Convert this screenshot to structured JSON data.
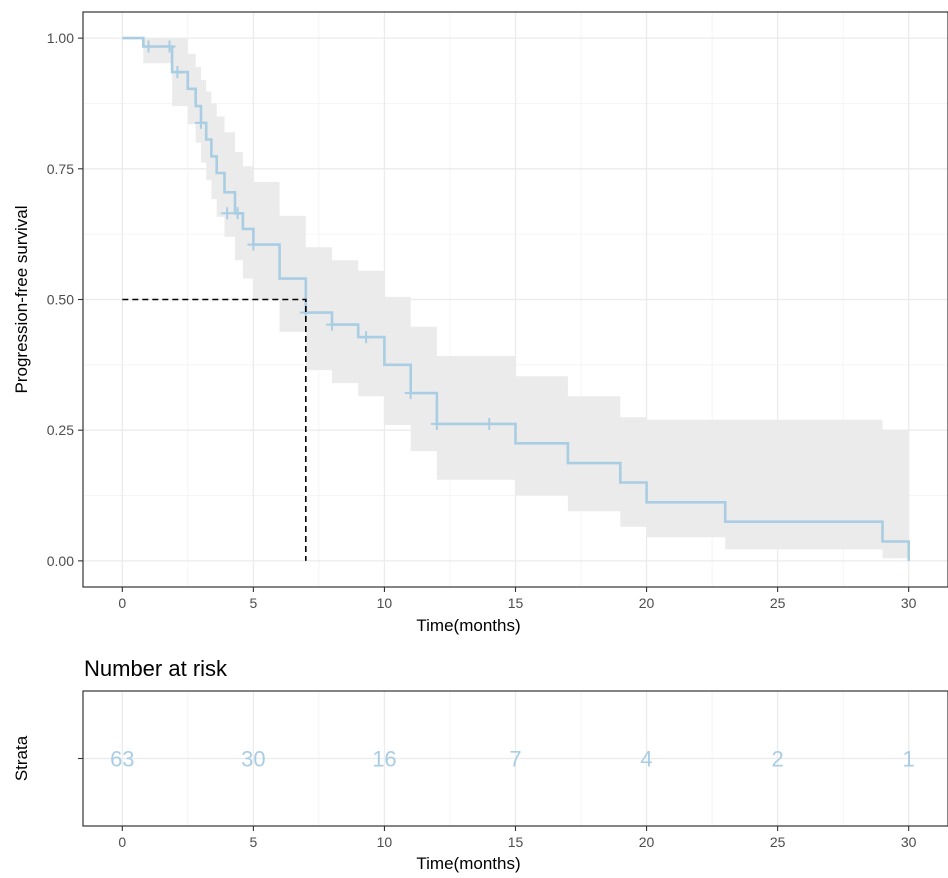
{
  "chart_data": [
    {
      "type": "line",
      "subtype": "kaplan-meier-step",
      "xlabel": "Time(months)",
      "ylabel": "Progression-free survival",
      "xlim": [
        -1.5,
        31.5
      ],
      "ylim": [
        -0.05,
        1.05
      ],
      "x_ticks": [
        0,
        5,
        10,
        15,
        20,
        25,
        30
      ],
      "y_ticks": [
        0,
        0.25,
        0.5,
        0.75,
        1.0
      ],
      "y_tick_labels": [
        "0.00",
        "0.25",
        "0.50",
        "0.75",
        "1.00"
      ],
      "grid": true,
      "colors": {
        "curve": "#a9cde3",
        "ci_band": "#ebebeb",
        "median_line": "#000000",
        "frame": "#333333",
        "grid": "#ebebeb"
      },
      "series": [
        {
          "steps": [
            [
              0,
              1.0
            ],
            [
              0.8,
              0.984
            ],
            [
              1.9,
              0.935
            ],
            [
              2.5,
              0.903
            ],
            [
              2.8,
              0.87
            ],
            [
              3.0,
              0.838
            ],
            [
              3.2,
              0.806
            ],
            [
              3.4,
              0.774
            ],
            [
              3.6,
              0.742
            ],
            [
              3.9,
              0.705
            ],
            [
              4.3,
              0.665
            ],
            [
              4.6,
              0.635
            ],
            [
              5.0,
              0.605
            ],
            [
              6.0,
              0.54
            ],
            [
              7.0,
              0.475
            ],
            [
              8.0,
              0.452
            ],
            [
              9.0,
              0.428
            ],
            [
              10.0,
              0.375
            ],
            [
              11.0,
              0.321
            ],
            [
              12.0,
              0.262
            ],
            [
              15.0,
              0.225
            ],
            [
              17.0,
              0.187
            ],
            [
              19.0,
              0.15
            ],
            [
              20.0,
              0.112
            ],
            [
              23.0,
              0.075
            ],
            [
              29.0,
              0.037
            ],
            [
              30.0,
              0.0
            ]
          ],
          "ci_lower": [
            [
              0,
              1.0
            ],
            [
              0.8,
              0.952
            ],
            [
              1.9,
              0.87
            ],
            [
              2.5,
              0.835
            ],
            [
              2.8,
              0.8
            ],
            [
              3.0,
              0.762
            ],
            [
              3.2,
              0.728
            ],
            [
              3.4,
              0.692
            ],
            [
              3.6,
              0.658
            ],
            [
              3.9,
              0.62
            ],
            [
              4.3,
              0.575
            ],
            [
              4.6,
              0.54
            ],
            [
              5.0,
              0.5
            ],
            [
              6.0,
              0.438
            ],
            [
              7.0,
              0.365
            ],
            [
              8.0,
              0.34
            ],
            [
              9.0,
              0.315
            ],
            [
              10.0,
              0.26
            ],
            [
              11.0,
              0.21
            ],
            [
              12.0,
              0.155
            ],
            [
              15.0,
              0.125
            ],
            [
              17.0,
              0.095
            ],
            [
              19.0,
              0.065
            ],
            [
              20.0,
              0.045
            ],
            [
              23.0,
              0.022
            ],
            [
              29.0,
              0.005
            ],
            [
              30.0,
              0.0
            ]
          ],
          "ci_upper": [
            [
              0,
              1.0
            ],
            [
              0.8,
              1.0
            ],
            [
              1.9,
              1.0
            ],
            [
              2.5,
              0.97
            ],
            [
              2.8,
              0.945
            ],
            [
              3.0,
              0.92
            ],
            [
              3.2,
              0.898
            ],
            [
              3.4,
              0.875
            ],
            [
              3.6,
              0.85
            ],
            [
              3.9,
              0.82
            ],
            [
              4.3,
              0.782
            ],
            [
              4.6,
              0.755
            ],
            [
              5.0,
              0.725
            ],
            [
              6.0,
              0.66
            ],
            [
              7.0,
              0.6
            ],
            [
              8.0,
              0.575
            ],
            [
              9.0,
              0.555
            ],
            [
              10.0,
              0.505
            ],
            [
              11.0,
              0.448
            ],
            [
              12.0,
              0.392
            ],
            [
              15.0,
              0.353
            ],
            [
              17.0,
              0.315
            ],
            [
              19.0,
              0.275
            ],
            [
              20.0,
              0.27
            ],
            [
              23.0,
              0.27
            ],
            [
              29.0,
              0.25
            ],
            [
              30.0,
              0.25
            ]
          ],
          "censor_marks": [
            [
              1.0,
              0.984
            ],
            [
              1.8,
              0.984
            ],
            [
              2.1,
              0.935
            ],
            [
              3.0,
              0.838
            ],
            [
              4.0,
              0.665
            ],
            [
              4.4,
              0.665
            ],
            [
              5.0,
              0.605
            ],
            [
              7.0,
              0.475
            ],
            [
              8.0,
              0.452
            ],
            [
              9.3,
              0.428
            ],
            [
              11.0,
              0.321
            ],
            [
              12.0,
              0.262
            ],
            [
              14.0,
              0.262
            ]
          ]
        }
      ],
      "median_time": 7.0,
      "median_survival": 0.5
    },
    {
      "type": "table",
      "title": "Number at risk",
      "ylabel": "Strata",
      "xlabel": "Time(months)",
      "xlim": [
        -1.5,
        31.5
      ],
      "x_ticks": [
        0,
        5,
        10,
        15,
        20,
        25,
        30
      ],
      "times": [
        0,
        5,
        10,
        15,
        20,
        25,
        30
      ],
      "counts": [
        "63",
        "30",
        "16",
        "7",
        "4",
        "2",
        "1"
      ],
      "count_color": "#a9cde3"
    }
  ]
}
